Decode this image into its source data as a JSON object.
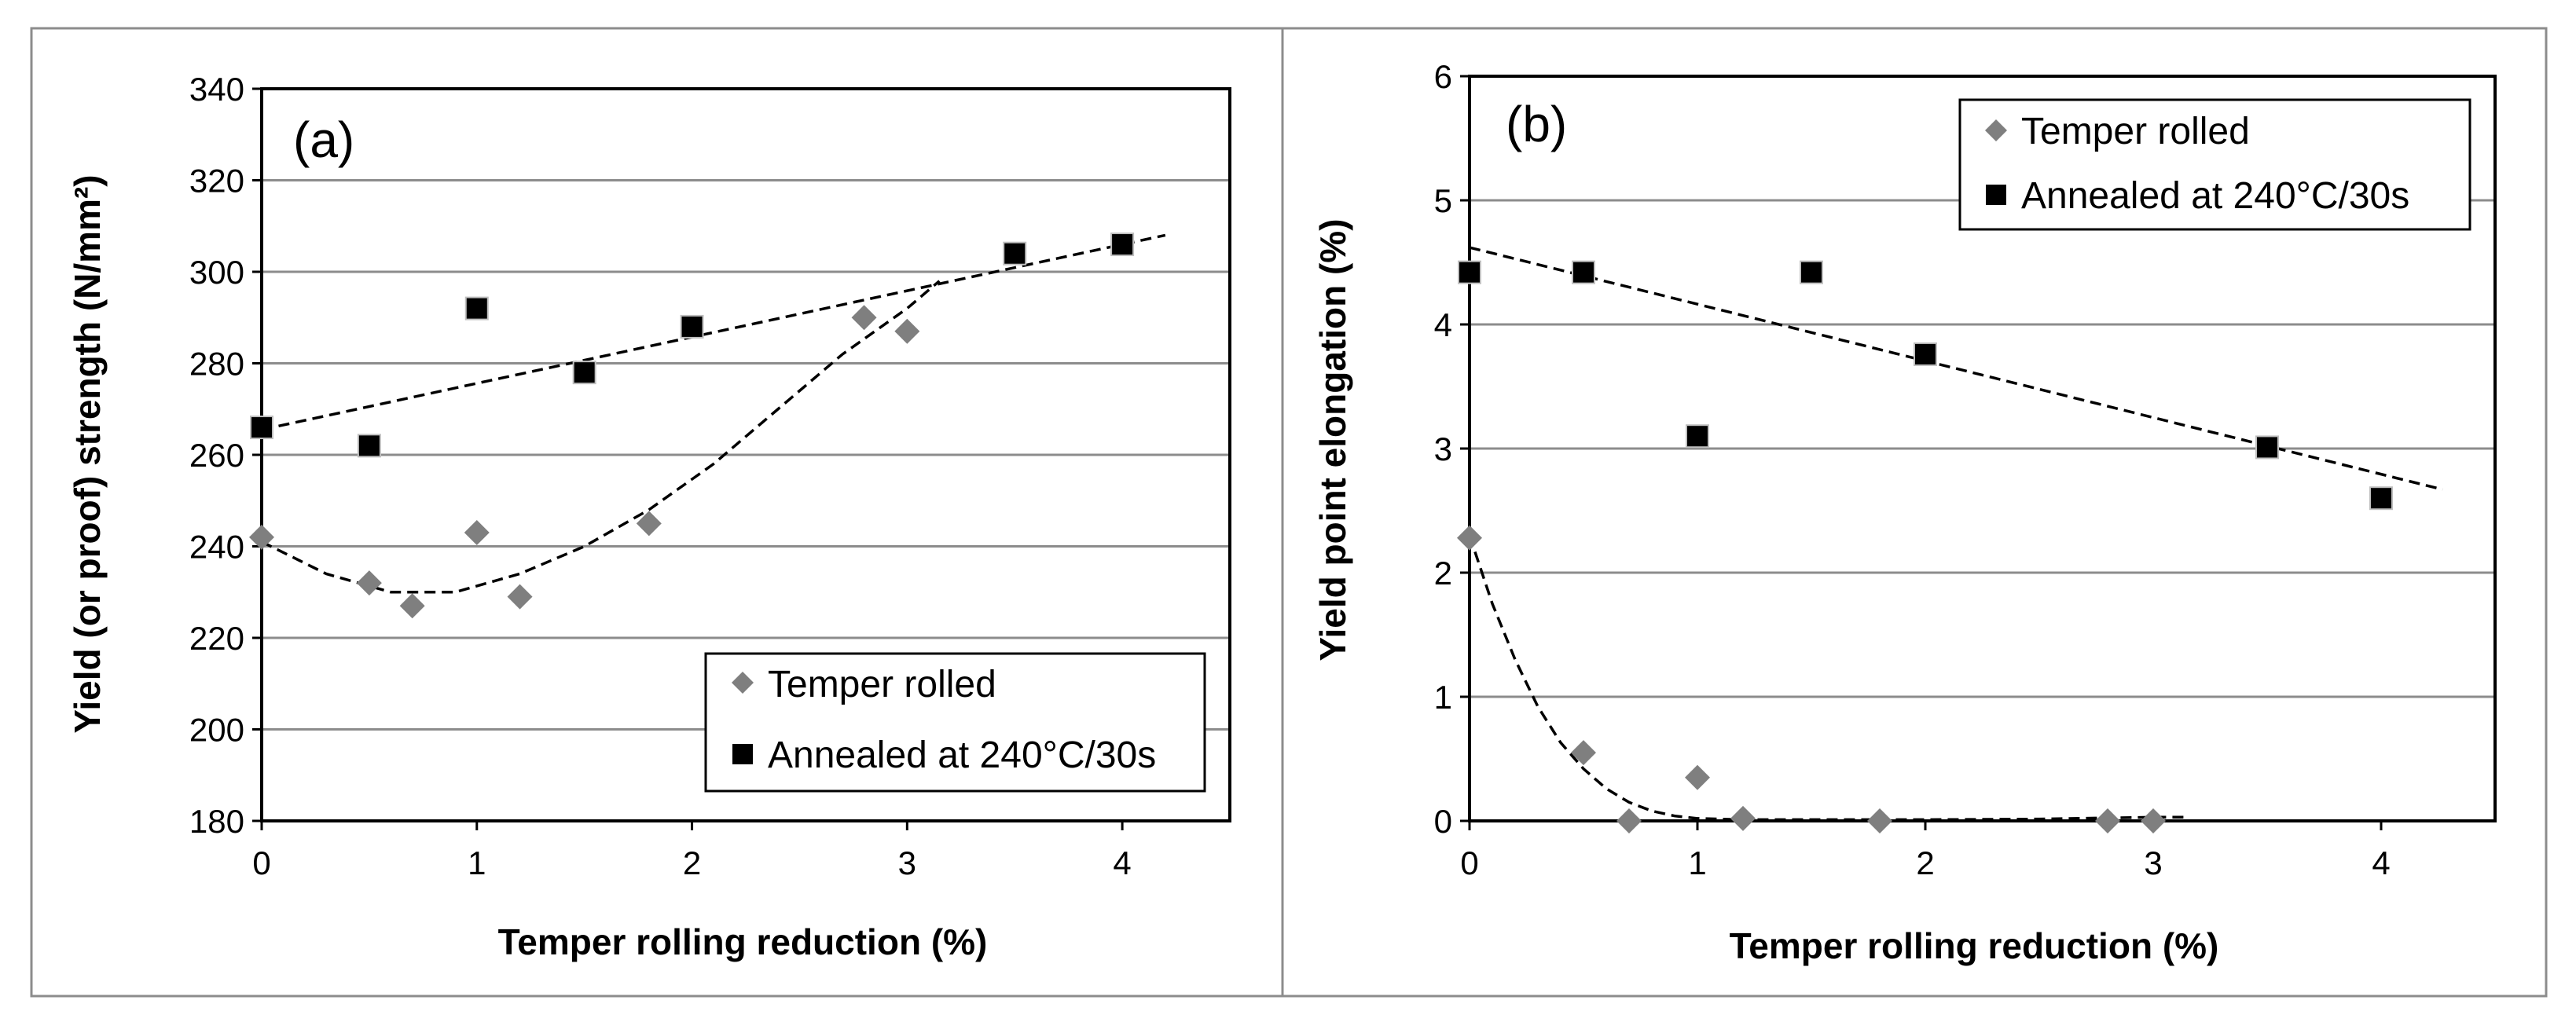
{
  "chart_data": [
    {
      "type": "scatter",
      "panel_label": "(a)",
      "xlabel": "Temper rolling reduction (%)",
      "ylabel": "Yield (or proof) strength (N/mm²)",
      "xlim": [
        0,
        4.5
      ],
      "ylim": [
        180,
        340
      ],
      "xticks": [
        "0",
        "1",
        "2",
        "3",
        "4"
      ],
      "yticks": [
        "180",
        "200",
        "220",
        "240",
        "260",
        "280",
        "300",
        "320",
        "340"
      ],
      "grid": true,
      "legend_position": "bottom-right",
      "series": [
        {
          "name": "Temper rolled",
          "marker": "diamond",
          "color": "#7f7f7f",
          "points": [
            [
              0,
              242
            ],
            [
              0.5,
              232
            ],
            [
              0.7,
              227
            ],
            [
              1.0,
              243
            ],
            [
              1.2,
              229
            ],
            [
              1.8,
              245
            ],
            [
              2.8,
              290
            ],
            [
              3.0,
              287
            ]
          ],
          "trend": [
            [
              0,
              241
            ],
            [
              0.3,
              234
            ],
            [
              0.6,
              230
            ],
            [
              0.9,
              230
            ],
            [
              1.2,
              234
            ],
            [
              1.5,
              240
            ],
            [
              1.8,
              248
            ],
            [
              2.1,
              258
            ],
            [
              2.4,
              270
            ],
            [
              2.7,
              282
            ],
            [
              3.0,
              292
            ],
            [
              3.15,
              298
            ]
          ]
        },
        {
          "name": "Annealed at 240°C/30s",
          "marker": "square",
          "color": "#000000",
          "points": [
            [
              0,
              266
            ],
            [
              0.5,
              262
            ],
            [
              1.0,
              292
            ],
            [
              1.5,
              278
            ],
            [
              2.0,
              288
            ],
            [
              3.5,
              304
            ],
            [
              4.0,
              306
            ]
          ],
          "trend": [
            [
              0,
              265.5
            ],
            [
              4.2,
              308
            ]
          ]
        }
      ]
    },
    {
      "type": "scatter",
      "panel_label": "(b)",
      "xlabel": "Temper rolling reduction (%)",
      "ylabel": "Yield point elongation (%)",
      "xlim": [
        0,
        4.5
      ],
      "ylim": [
        0,
        6
      ],
      "xticks": [
        "0",
        "1",
        "2",
        "3",
        "4"
      ],
      "yticks": [
        "0",
        "1",
        "2",
        "3",
        "4",
        "5",
        "6"
      ],
      "grid": true,
      "legend_position": "top-right",
      "series": [
        {
          "name": "Temper rolled",
          "marker": "diamond",
          "color": "#7f7f7f",
          "points": [
            [
              0,
              2.28
            ],
            [
              0.5,
              0.55
            ],
            [
              0.7,
              0.0
            ],
            [
              1.0,
              0.35
            ],
            [
              1.2,
              0.02
            ],
            [
              1.8,
              0.0
            ],
            [
              2.8,
              0.0
            ],
            [
              3.0,
              0.0
            ]
          ],
          "trend": [
            [
              0,
              2.3
            ],
            [
              0.1,
              1.75
            ],
            [
              0.2,
              1.3
            ],
            [
              0.3,
              0.92
            ],
            [
              0.4,
              0.63
            ],
            [
              0.5,
              0.42
            ],
            [
              0.6,
              0.26
            ],
            [
              0.7,
              0.15
            ],
            [
              0.8,
              0.08
            ],
            [
              0.9,
              0.04
            ],
            [
              1.0,
              0.02
            ],
            [
              1.2,
              0.01
            ],
            [
              1.5,
              0.01
            ],
            [
              2.0,
              0.01
            ],
            [
              2.5,
              0.015
            ],
            [
              3.0,
              0.03
            ],
            [
              3.15,
              0.03
            ]
          ]
        },
        {
          "name": "Annealed at 240°C/30s",
          "marker": "square",
          "color": "#000000",
          "points": [
            [
              0,
              4.42
            ],
            [
              0.5,
              4.42
            ],
            [
              1.0,
              3.1
            ],
            [
              1.5,
              4.42
            ],
            [
              2.0,
              3.76
            ],
            [
              3.5,
              3.01
            ],
            [
              4.0,
              2.6
            ]
          ],
          "trend": [
            [
              0,
              4.62
            ],
            [
              4.27,
              2.67
            ]
          ]
        }
      ]
    }
  ]
}
